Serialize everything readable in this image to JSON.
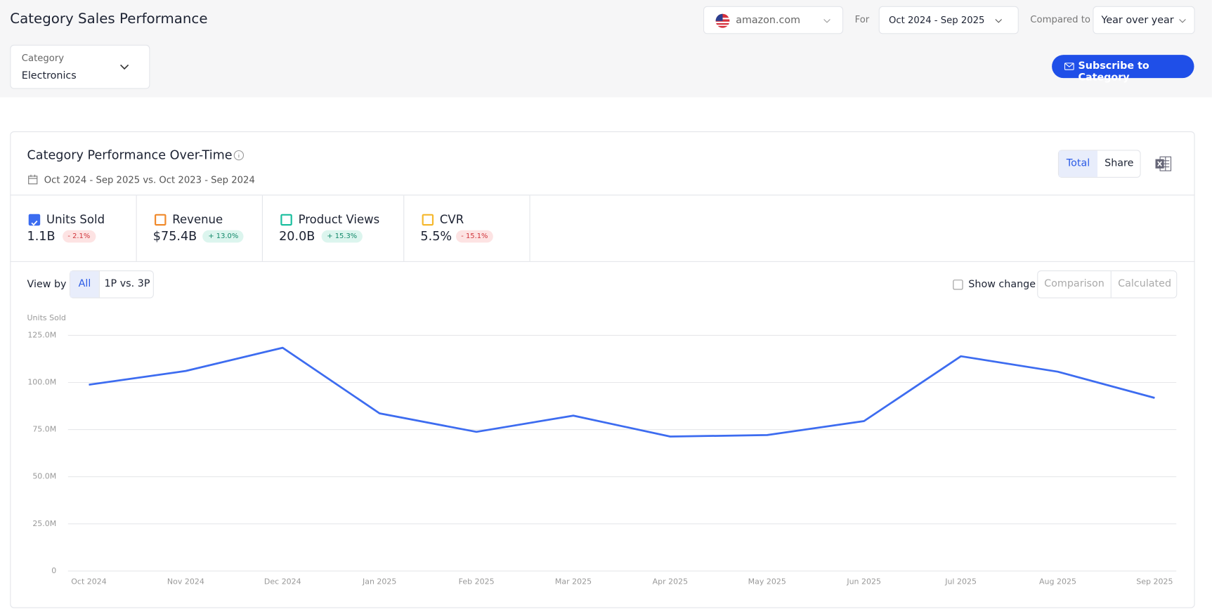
{
  "header": {
    "title": "Category Sales Performance",
    "marketplace": "amazon.com",
    "for_label": "For",
    "period": "Oct 2024 - Sep 2025",
    "compared_label": "Compared to",
    "comparison": "Year over year",
    "category_label": "Category",
    "category": "Electronics",
    "subscribe": "Subscribe to Category"
  },
  "panel": {
    "title": "Category Performance Over-Time",
    "date_range": "Oct 2024 - Sep 2025 vs. Oct 2023 - Sep 2024",
    "toggles": [
      "Total",
      "Share"
    ]
  },
  "metrics": [
    {
      "name": "Units Sold",
      "value": "1.1B",
      "change": "- 2.1%",
      "trend": "down",
      "color": "#3b6cf0",
      "checked": true
    },
    {
      "name": "Revenue",
      "value": "$75.4B",
      "change": "+ 13.0%",
      "trend": "up",
      "color": "#f08a2c",
      "checked": false
    },
    {
      "name": "Product Views",
      "value": "20.0B",
      "change": "+ 15.3%",
      "trend": "up",
      "color": "#1bbf9f",
      "checked": false
    },
    {
      "name": "CVR",
      "value": "5.5%",
      "change": "- 15.1%",
      "trend": "down",
      "color": "#f5b82e",
      "checked": false
    }
  ],
  "view": {
    "label": "View by",
    "options": [
      "All",
      "1P vs. 3P"
    ],
    "show_change": "Show change",
    "modes": [
      "Comparison",
      "Calculated"
    ]
  },
  "chart_data": {
    "type": "line",
    "categories": [
      "Oct 2024",
      "Nov 2024",
      "Dec 2024",
      "Jan 2025",
      "Feb 2025",
      "Mar 2025",
      "Apr 2025",
      "May 2025",
      "Jun 2025",
      "Jul 2025",
      "Aug 2025",
      "Sep 2025"
    ],
    "series": [
      {
        "name": "Units Sold",
        "color": "#3d6cf0",
        "values": [
          98.8,
          106.1,
          118.4,
          83.6,
          73.8,
          82.4,
          71.3,
          72.1,
          79.5,
          113.9,
          105.7,
          91.8
        ]
      }
    ],
    "ylim": [
      0,
      125
    ],
    "yticks": [
      0,
      {
        "value": 25,
        "label": "25.0M"
      },
      {
        "value": 50,
        "label": "50.0M"
      },
      {
        "value": 75,
        "label": "75.0M"
      },
      {
        "value": 100,
        "label": "100.0M"
      },
      {
        "value": 125,
        "label": "125.0M"
      }
    ],
    "grid": true
  }
}
